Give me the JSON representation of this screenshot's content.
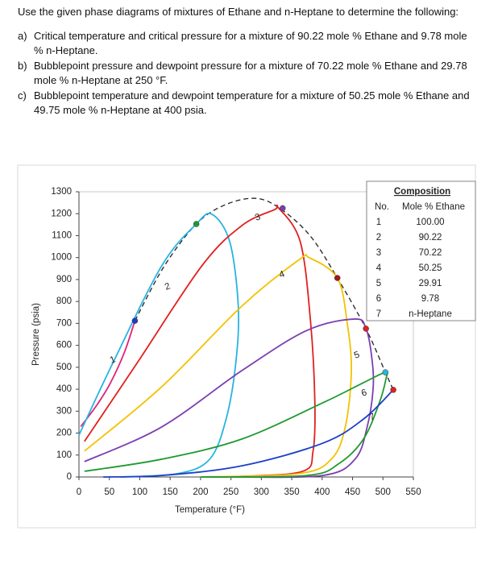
{
  "instruction": "Use the given phase diagrams of mixtures of Ethane and n-Heptane to determine the following:",
  "questions": [
    {
      "label": "a)",
      "text": "Critical temperature and critical pressure for a mixture of 90.22 mole % Ethane and 9.78 mole % n-Heptane."
    },
    {
      "label": "b)",
      "text": "Bubblepoint pressure and dewpoint pressure for a mixture of 70.22 mole % Ethane and 29.78 mole % n-Heptane at 250 °F."
    },
    {
      "label": "c)",
      "text": "Bubblepoint temperature and dewpoint temperature for a mixture of 50.25 mole % Ethane and 49.75 mole % n-Heptane at 400 psia."
    }
  ],
  "composition": {
    "title": "Composition",
    "headers": [
      "No.",
      "Mole % Ethane"
    ],
    "rows": [
      [
        "1",
        "100.00"
      ],
      [
        "2",
        "90.22"
      ],
      [
        "3",
        "70.22"
      ],
      [
        "4",
        "50.25"
      ],
      [
        "5",
        "29.91"
      ],
      [
        "6",
        "9.78"
      ],
      [
        "7",
        "n-Heptane"
      ]
    ]
  },
  "chart_data": {
    "type": "line",
    "xlabel": "Temperature (°F)",
    "ylabel": "Pressure (psia)",
    "xlim": [
      0,
      550
    ],
    "ylim": [
      0,
      1300
    ],
    "xticks": [
      0,
      50,
      100,
      150,
      200,
      250,
      300,
      350,
      400,
      450,
      500,
      550
    ],
    "yticks": [
      0,
      100,
      200,
      300,
      400,
      500,
      600,
      700,
      800,
      900,
      1000,
      1100,
      1200,
      1300
    ],
    "grid": false,
    "series": [
      {
        "name": "1",
        "color": "#e0237a",
        "x": [
          3,
          30,
          52,
          75,
          92
        ],
        "values": [
          230,
          330,
          430,
          570,
          712
        ]
      },
      {
        "name": "2",
        "color": "#27b4e0",
        "x": [
          0,
          56,
          136,
          193,
          219,
          248,
          262,
          258,
          242,
          215,
          162,
          69
        ],
        "values": [
          191,
          521,
          962,
          1153,
          1197,
          1072,
          779,
          521,
          264,
          81,
          15,
          0
        ]
      },
      {
        "name": "3",
        "color": "#e02020",
        "x": [
          9,
          96,
          202,
          268,
          322,
          328,
          364,
          381,
          388,
          385,
          368,
          268,
          202
        ],
        "values": [
          162,
          521,
          962,
          1146,
          1219,
          1227,
          1072,
          705,
          338,
          118,
          26,
          3,
          0
        ]
      },
      {
        "name": "4",
        "color": "#f2c200",
        "x": [
          9,
          136,
          268,
          362,
          379,
          425,
          441,
          448,
          438,
          415,
          361,
          202
        ],
        "values": [
          118,
          411,
          779,
          990,
          999,
          907,
          705,
          485,
          228,
          81,
          15,
          0
        ]
      },
      {
        "name": "5",
        "color": "#7a3fb0",
        "x": [
          9,
          136,
          268,
          375,
          454,
          472,
          481,
          484,
          474,
          454,
          401,
          250
        ],
        "values": [
          70,
          228,
          485,
          668,
          720,
          676,
          558,
          411,
          228,
          81,
          7,
          0
        ]
      },
      {
        "name": "6",
        "color": "#1e9a2e",
        "x": [
          9,
          136,
          268,
          401,
          468,
          504,
          505,
          494,
          468,
          428,
          375,
          200
        ],
        "values": [
          26,
          81,
          173,
          338,
          430,
          477,
          448,
          338,
          173,
          62,
          7,
          0
        ]
      },
      {
        "name": "7",
        "color": "#1a3fc8",
        "x": [
          40,
          136,
          268,
          401,
          468,
          517
        ],
        "values": [
          0,
          7,
          51,
          154,
          264,
          397
        ]
      }
    ],
    "critical_locus": {
      "color": "#222222",
      "x": [
        92,
        140,
        193,
        240,
        290,
        330,
        380,
        425,
        472,
        504,
        517
      ],
      "values": [
        712,
        960,
        1153,
        1240,
        1270,
        1225,
        1100,
        907,
        676,
        477,
        397
      ]
    },
    "critical_points": {
      "x": [
        92,
        193,
        335,
        425,
        472,
        504,
        517
      ],
      "values": [
        712,
        1153,
        1225,
        907,
        676,
        477,
        397
      ],
      "colors": [
        "#1a3fc8",
        "#1e9a2e",
        "#7a3fb0",
        "#a01818",
        "#e02020",
        "#27b4e0",
        "#e02020"
      ]
    }
  }
}
